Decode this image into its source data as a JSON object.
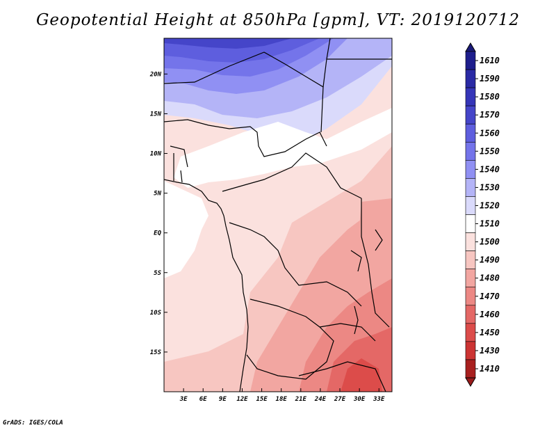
{
  "title": "Geopotential Height at 850hPa [gpm], VT: 2019120712",
  "credit": "GrADS: IGES/COLA",
  "map": {
    "region": "Central and Southern Africa",
    "lon_range": [
      0,
      35
    ],
    "lat_range": [
      -20,
      24.5
    ],
    "x_ticks": [
      {
        "lon": 3,
        "label": "3E"
      },
      {
        "lon": 6,
        "label": "6E"
      },
      {
        "lon": 9,
        "label": "9E"
      },
      {
        "lon": 12,
        "label": "12E"
      },
      {
        "lon": 15,
        "label": "15E"
      },
      {
        "lon": 18,
        "label": "18E"
      },
      {
        "lon": 21,
        "label": "21E"
      },
      {
        "lon": 24,
        "label": "24E"
      },
      {
        "lon": 27,
        "label": "27E"
      },
      {
        "lon": 30,
        "label": "30E"
      },
      {
        "lon": 33,
        "label": "33E"
      }
    ],
    "y_ticks": [
      {
        "lat": 20,
        "label": "20N"
      },
      {
        "lat": 15,
        "label": "15N"
      },
      {
        "lat": 10,
        "label": "10N"
      },
      {
        "lat": 5,
        "label": "5N"
      },
      {
        "lat": 0,
        "label": "EQ"
      },
      {
        "lat": -5,
        "label": "5S"
      },
      {
        "lat": -10,
        "label": "10S"
      },
      {
        "lat": -15,
        "label": "15S"
      }
    ]
  },
  "colorbar": {
    "levels": [
      {
        "label": "1610",
        "color": "#1e1e8c"
      },
      {
        "label": "1590",
        "color": "#2a2aa5"
      },
      {
        "label": "1580",
        "color": "#3535b8"
      },
      {
        "label": "1570",
        "color": "#4545c9"
      },
      {
        "label": "1560",
        "color": "#5e5ede"
      },
      {
        "label": "1550",
        "color": "#7474ea"
      },
      {
        "label": "1540",
        "color": "#9090f3"
      },
      {
        "label": "1530",
        "color": "#b4b4f7"
      },
      {
        "label": "1520",
        "color": "#dadafb"
      },
      {
        "label": "1510",
        "color": "#ffffff"
      },
      {
        "label": "1500",
        "color": "#fbe1de"
      },
      {
        "label": "1490",
        "color": "#f7c6c1"
      },
      {
        "label": "1480",
        "color": "#f2a6a1"
      },
      {
        "label": "1470",
        "color": "#ec8884"
      },
      {
        "label": "1460",
        "color": "#e46866"
      },
      {
        "label": "1450",
        "color": "#dc4c4a"
      },
      {
        "label": "1430",
        "color": "#cc3433"
      },
      {
        "label": "1410",
        "color": "#a8201f"
      }
    ],
    "top_cap_color": "#1a1a78",
    "bottom_cap_color": "#991b1b"
  }
}
